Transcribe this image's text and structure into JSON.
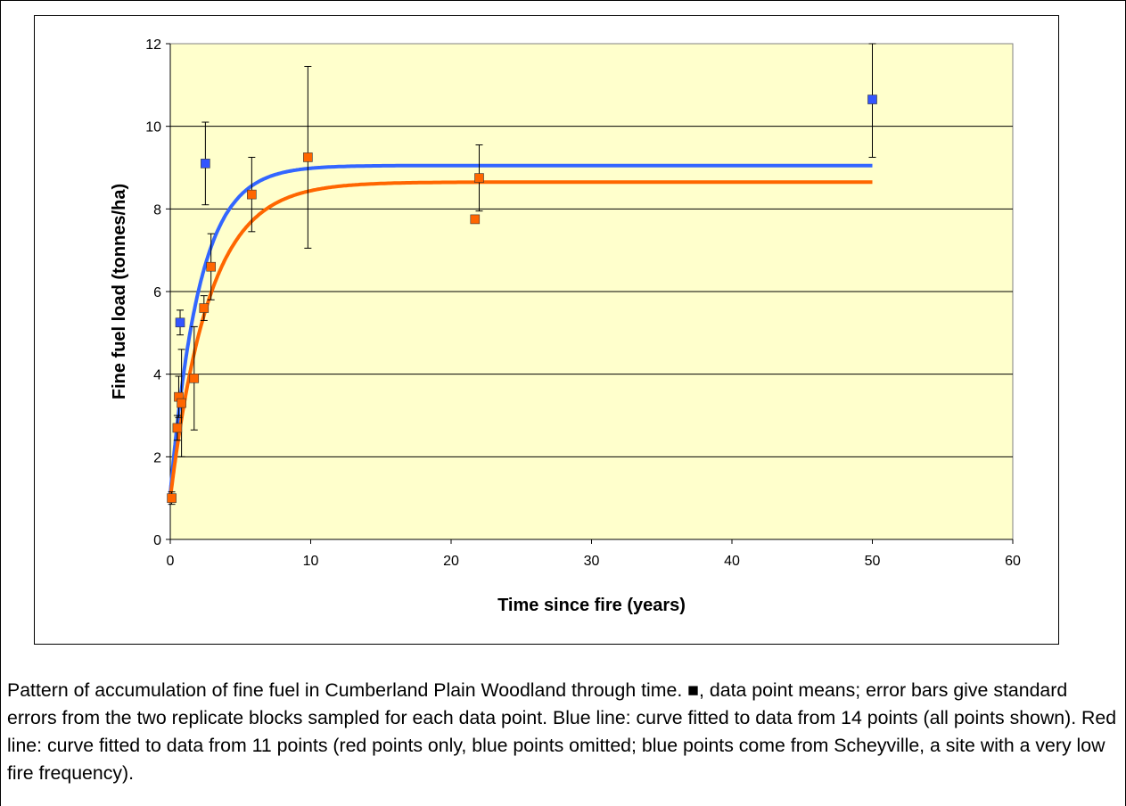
{
  "chart_data": {
    "type": "scatter",
    "title": "",
    "xlabel": "Time since fire (years)",
    "ylabel": "Fine fuel load (tonnes/ha)",
    "xlim": [
      0,
      60
    ],
    "ylim": [
      0,
      12
    ],
    "x_ticks": [
      "0",
      "10",
      "20",
      "30",
      "40",
      "50",
      "60"
    ],
    "y_ticks": [
      "0",
      "2",
      "4",
      "6",
      "8",
      "10",
      "12"
    ],
    "grid": "horizontal",
    "legend": "none",
    "plot_background": "#ffffcc",
    "series": [
      {
        "marker_color": "#ff6600",
        "points": [
          {
            "x": 0.1,
            "y": 1.0,
            "err": 0.15
          },
          {
            "x": 0.5,
            "y": 2.7,
            "err": 0.3
          },
          {
            "x": 0.6,
            "y": 3.45,
            "err": 0.5
          },
          {
            "x": 0.8,
            "y": 3.3,
            "err": 1.3
          },
          {
            "x": 1.7,
            "y": 3.9,
            "err": 1.25
          },
          {
            "x": 2.4,
            "y": 5.6,
            "err": 0.3
          },
          {
            "x": 2.9,
            "y": 6.6,
            "err": 0.8
          },
          {
            "x": 5.8,
            "y": 8.35,
            "err": 0.9
          },
          {
            "x": 9.8,
            "y": 9.25,
            "err": 2.2
          },
          {
            "x": 21.7,
            "y": 7.75,
            "err": 0
          },
          {
            "x": 22.0,
            "y": 8.75,
            "err": 0.8
          }
        ]
      },
      {
        "marker_color": "#3355ff",
        "points": [
          {
            "x": 0.7,
            "y": 5.25,
            "err": 0.3
          },
          {
            "x": 2.5,
            "y": 9.1,
            "err": 1.0
          },
          {
            "x": 50.0,
            "y": 10.65,
            "err": 1.4
          }
        ]
      }
    ],
    "fitted_curves": [
      {
        "color": "#3366ff",
        "asymptote": 9.05,
        "y0": 1.1,
        "rate": 0.48,
        "x_end": 50
      },
      {
        "color": "#ff6600",
        "asymptote": 8.65,
        "y0": 1.0,
        "rate": 0.36,
        "x_end": 50
      }
    ]
  },
  "caption": "Pattern of accumulation of fine fuel in Cumberland Plain Woodland through time. ■, data point means; error bars give standard errors from the two replicate blocks sampled for each data point. Blue line: curve fitted to data from 14 points (all points shown). Red line: curve fitted to data from 11 points (red points only, blue points omitted; blue points come from Scheyville, a site with a very low fire frequency)."
}
